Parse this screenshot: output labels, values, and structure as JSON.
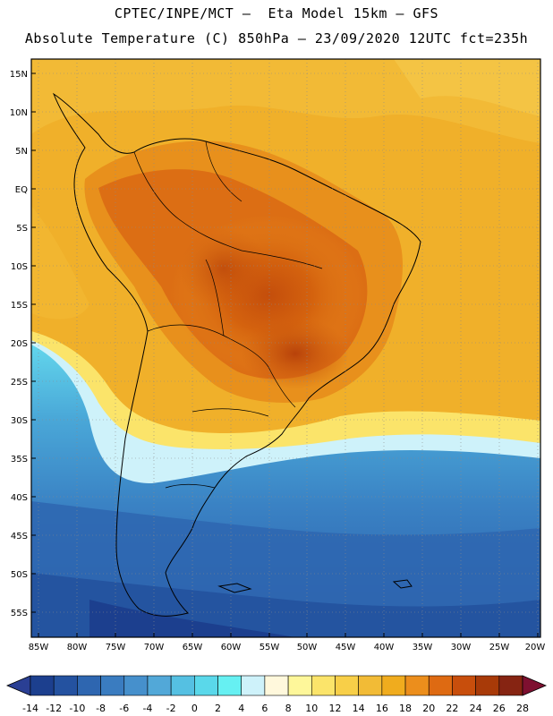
{
  "header": {
    "line1": "CPTEC/INPE/MCT –  Eta Model 15km – GFS",
    "line2": "Absolute Temperature (C) 850hPa – 23/09/2020 12UTC fct=235h"
  },
  "map": {
    "lat_labels": [
      "15N",
      "10N",
      "5N",
      "EQ",
      "5S",
      "10S",
      "15S",
      "20S",
      "25S",
      "30S",
      "35S",
      "40S",
      "45S",
      "50S",
      "55S"
    ],
    "lon_labels": [
      "85W",
      "80W",
      "75W",
      "70W",
      "65W",
      "60W",
      "55W",
      "50W",
      "45W",
      "40W",
      "35W",
      "30W",
      "25W",
      "20W"
    ]
  },
  "colorbar": {
    "labels": [
      "-14",
      "-12",
      "-10",
      "-8",
      "-6",
      "-4",
      "-2",
      "0",
      "2",
      "4",
      "6",
      "8",
      "10",
      "12",
      "14",
      "16",
      "18",
      "20",
      "22",
      "24",
      "26",
      "28"
    ],
    "colors": [
      "#1c3f8e",
      "#2452a0",
      "#2e66b0",
      "#3a7cc0",
      "#4690cc",
      "#52a8d8",
      "#55c0e2",
      "#5ad8ea",
      "#66f0f2",
      "#cef2fa",
      "#fff8dc",
      "#fef79a",
      "#fbe46a",
      "#f8cf48",
      "#f2bb36",
      "#f0ac1e",
      "#ec8e1c",
      "#de6a12",
      "#c84e0c",
      "#a83a08",
      "#862412"
    ],
    "under_color": "#2a3f94",
    "over_color": "#7e1030"
  }
}
